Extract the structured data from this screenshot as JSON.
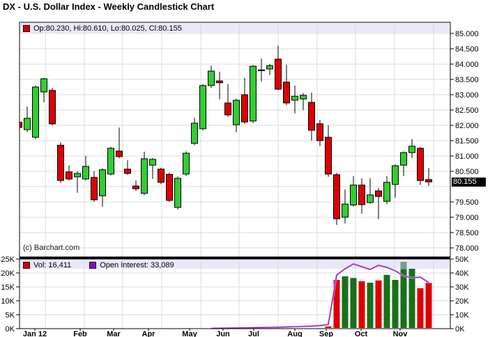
{
  "window": {
    "title": "DX - U.S. Dollar Index - Weekly Candlestick Chart"
  },
  "price_panel": {
    "legend": {
      "swatch": "red-square",
      "text": "Op:80.230, Hi:80.610, Lo:80.025, Cl:80.155"
    },
    "watermark": "(c) Barchart.com",
    "last_price_badge": "80.155",
    "y_axis_labels": [
      "85.000",
      "84.500",
      "84.000",
      "83.500",
      "83.000",
      "82.500",
      "82.000",
      "81.500",
      "81.000",
      "80.500",
      "79.500",
      "79.000",
      "78.500",
      "78.000"
    ]
  },
  "volume_panel": {
    "legend": {
      "vol_text": "Vol: 16,411",
      "oi_text": "Open Interest: 33,089"
    },
    "left_axis_labels": [
      "25K",
      "20K",
      "15K",
      "10K",
      "5K",
      "0K"
    ],
    "right_axis_labels": [
      "50K",
      "40K",
      "30K",
      "20K",
      "10K",
      "0K"
    ]
  },
  "x_axis": {
    "labels": [
      "Jan 12",
      "Feb",
      "Mar",
      "Apr",
      "May",
      "Jun",
      "Jul",
      "Aug",
      "Sep",
      "Oct",
      "Nov"
    ],
    "positions": [
      50,
      115,
      163,
      213,
      272,
      320,
      364,
      423,
      468,
      518,
      574
    ],
    "grid_x": [
      65,
      121,
      176,
      232,
      288,
      343,
      399,
      455,
      510,
      566,
      622
    ]
  },
  "colors": {
    "up": "#33cc33",
    "down": "#dd0000",
    "vol_up": "#1a701a",
    "vol_down": "#dd0000",
    "vol_highlight": "#6f9f90",
    "oi": "#8822bb",
    "oi_halo": "#d9a6e8",
    "legend_bg": "#e8e8f8",
    "grid": "#d9d9d9",
    "badge_bg": "#000000",
    "badge_fg": "#ffffff",
    "swatch_red": "#cc0000",
    "swatch_purple": "#7711cc"
  },
  "chart_data": [
    {
      "type": "candlestick",
      "title": "DX - U.S. Dollar Index - Weekly Candlestick Chart",
      "interval": "weekly",
      "ylim": [
        77.7,
        85.35
      ],
      "y_ticks": [
        85.0,
        84.5,
        84.0,
        83.5,
        83.0,
        82.5,
        82.0,
        81.5,
        81.0,
        80.5,
        80.0,
        79.5,
        79.0,
        78.5,
        78.0
      ],
      "last_bar": {
        "open": 80.23,
        "high": 80.61,
        "low": 80.025,
        "close": 80.155
      },
      "ohlc": [
        [
          82.1,
          82.25,
          81.9,
          81.93
        ],
        [
          81.86,
          82.61,
          81.78,
          82.23
        ],
        [
          81.61,
          83.3,
          81.55,
          83.25
        ],
        [
          83.09,
          83.55,
          82.75,
          83.52
        ],
        [
          83.14,
          83.22,
          82.0,
          82.05
        ],
        [
          81.35,
          81.45,
          80.12,
          80.2
        ],
        [
          80.48,
          80.7,
          80.2,
          80.25
        ],
        [
          80.32,
          80.5,
          79.8,
          80.43
        ],
        [
          80.25,
          81.0,
          80.2,
          80.66
        ],
        [
          80.3,
          80.5,
          79.5,
          79.57
        ],
        [
          79.7,
          80.6,
          79.35,
          80.55
        ],
        [
          80.41,
          81.3,
          80.36,
          81.25
        ],
        [
          81.16,
          81.93,
          80.92,
          80.98
        ],
        [
          80.57,
          80.86,
          80.38,
          80.43
        ],
        [
          80.02,
          80.2,
          79.86,
          79.93
        ],
        [
          79.78,
          81.14,
          79.72,
          80.91
        ],
        [
          80.7,
          80.93,
          80.25,
          80.89
        ],
        [
          80.57,
          80.62,
          80.08,
          80.14
        ],
        [
          80.4,
          80.46,
          79.5,
          79.55
        ],
        [
          79.32,
          80.33,
          79.25,
          80.27
        ],
        [
          80.41,
          81.15,
          80.35,
          81.09
        ],
        [
          81.41,
          82.25,
          81.35,
          82.07
        ],
        [
          81.89,
          83.35,
          81.83,
          83.3
        ],
        [
          83.3,
          83.95,
          83.22,
          83.77
        ],
        [
          83.45,
          83.75,
          82.85,
          83.39
        ],
        [
          82.73,
          83.35,
          82.28,
          82.34
        ],
        [
          82.02,
          82.87,
          81.77,
          82.82
        ],
        [
          83.0,
          83.55,
          82.05,
          82.11
        ],
        [
          82.14,
          83.97,
          82.08,
          83.93
        ],
        [
          83.8,
          84.18,
          83.43,
          83.81
        ],
        [
          83.84,
          84.0,
          83.64,
          83.95
        ],
        [
          84.16,
          84.6,
          83.15,
          83.18
        ],
        [
          83.41,
          83.98,
          82.66,
          82.73
        ],
        [
          82.82,
          83.3,
          82.39,
          82.95
        ],
        [
          82.86,
          83.05,
          82.5,
          82.98
        ],
        [
          82.75,
          83.07,
          81.5,
          81.84
        ],
        [
          82.05,
          82.18,
          81.32,
          81.5
        ],
        [
          81.61,
          82.0,
          80.32,
          80.41
        ],
        [
          80.39,
          80.45,
          78.75,
          78.95
        ],
        [
          79.0,
          79.9,
          78.8,
          79.43
        ],
        [
          79.4,
          80.34,
          79.35,
          80.05
        ],
        [
          80.05,
          80.27,
          79.11,
          79.41
        ],
        [
          79.48,
          80.27,
          79.44,
          79.73
        ],
        [
          79.86,
          79.95,
          78.94,
          79.68
        ],
        [
          79.52,
          80.34,
          79.43,
          80.14
        ],
        [
          80.07,
          80.72,
          79.64,
          80.68
        ],
        [
          80.7,
          81.15,
          80.34,
          81.11
        ],
        [
          81.11,
          81.55,
          80.93,
          81.32
        ],
        [
          81.25,
          81.3,
          80.05,
          80.2
        ],
        [
          80.23,
          80.61,
          80.025,
          80.155
        ]
      ]
    },
    {
      "type": "bar",
      "name": "Volume",
      "unit": "K contracts",
      "left_ylim_k": [
        0,
        25
      ],
      "right_ylim_k": [
        0,
        50
      ],
      "current_volume": 16411,
      "values": [
        0,
        0,
        0,
        0,
        0,
        0,
        0,
        0,
        0,
        0,
        0,
        0,
        0,
        0,
        0,
        0,
        0,
        0,
        0,
        0,
        0,
        0,
        0,
        0,
        0,
        0,
        0,
        0,
        0,
        0,
        0,
        0,
        0,
        0,
        0,
        0,
        0,
        0.8,
        17.5,
        18.8,
        18.2,
        17.0,
        16.5,
        17.3,
        19.3,
        17.5,
        24.0,
        21.5,
        14.5,
        16.4
      ],
      "highlight": {
        "index": 46,
        "from": 21.3
      },
      "line_series": {
        "name": "Open Interest",
        "current_value": 33089,
        "scale": "right",
        "values": [
          null,
          null,
          null,
          null,
          null,
          null,
          null,
          null,
          null,
          null,
          null,
          null,
          null,
          null,
          null,
          null,
          null,
          null,
          null,
          null,
          null,
          null,
          null,
          0.2,
          0.3,
          0.4,
          0.5,
          0.6,
          0.7,
          0.8,
          0.9,
          1.0,
          1.2,
          1.4,
          1.6,
          1.8,
          2.2,
          3.0,
          38.5,
          43.0,
          46.5,
          44.5,
          42.5,
          45.5,
          44.0,
          41.5,
          38.0,
          36.5,
          37.0,
          33.1
        ]
      }
    }
  ]
}
